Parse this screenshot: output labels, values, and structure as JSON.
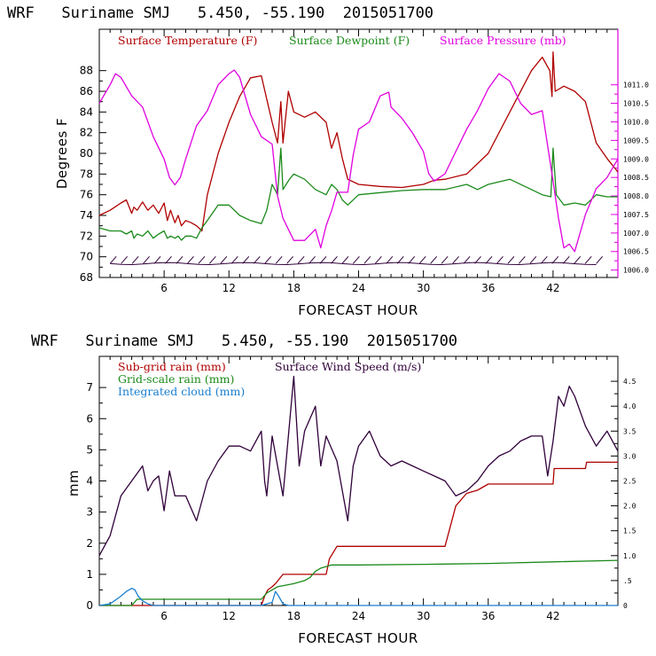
{
  "chart_data": [
    {
      "type": "line",
      "title": "WRF   Suriname SMJ   5.450, -55.190  2015051700",
      "xlabel": "FORECAST HOUR",
      "ylabel": "Degrees F",
      "xlim": [
        0,
        48
      ],
      "ylim": [
        68,
        92
      ],
      "xticks": [
        6,
        12,
        18,
        24,
        30,
        36,
        42
      ],
      "yticks": [
        68,
        70,
        72,
        74,
        76,
        78,
        80,
        82,
        84,
        86,
        88
      ],
      "y2lim": [
        1005.8,
        1012.5
      ],
      "y2ticks": [
        1006.0,
        1006.5,
        1007.0,
        1007.5,
        1008.0,
        1008.5,
        1009.0,
        1009.5,
        1010.0,
        1010.5,
        1011.0
      ],
      "y2ticklabels": [
        "1006.0",
        "1006.5",
        "1007.0",
        "1007.5",
        "1008.0",
        "1008.5",
        "1009.0",
        "1009.5",
        "1010.0",
        "1010.5",
        "1011.0"
      ],
      "legend": [
        "Surface Temperature (F)",
        "Surface Dewpoint (F)",
        "Surface Pressure (mb)"
      ],
      "colors": {
        "temperature": "#b00000",
        "dewpoint": "#1a8a1a",
        "pressure": "#e000e0",
        "wind": "#30003a"
      },
      "series": [
        {
          "name": "Surface Temperature (F)",
          "axis": "left",
          "x": [
            0,
            1,
            2,
            2.5,
            3,
            3.2,
            3.5,
            4,
            4.5,
            5,
            5.5,
            6,
            6.3,
            6.6,
            7,
            7.3,
            7.6,
            8,
            8.5,
            9,
            9.5,
            10,
            11,
            12,
            13,
            14,
            15,
            16,
            16.5,
            16.8,
            17,
            17.5,
            18,
            19,
            20,
            21,
            21.5,
            22,
            22.5,
            23,
            24,
            26,
            28,
            30,
            31,
            32,
            34,
            36,
            38,
            40,
            41,
            41.7,
            41.9,
            42,
            42.2,
            43,
            44,
            45,
            46,
            47,
            48
          ],
          "y": [
            74,
            74.5,
            75.2,
            75.5,
            74.2,
            74.8,
            74.5,
            75.3,
            74.5,
            75,
            74.2,
            75.2,
            73.5,
            74.5,
            73.3,
            74,
            73,
            73.5,
            73.3,
            73,
            72.5,
            76,
            80,
            83,
            85.5,
            87.3,
            87.5,
            83,
            81,
            85,
            81,
            86,
            84,
            83.5,
            84,
            83,
            80.5,
            82,
            79.5,
            77.5,
            77,
            76.8,
            76.7,
            77,
            77.4,
            77.5,
            78,
            80,
            84,
            88,
            89.3,
            88,
            85.5,
            89.8,
            86,
            86.5,
            86,
            85,
            81,
            79.5,
            78.2
          ]
        },
        {
          "name": "Surface Dewpoint (F)",
          "axis": "left",
          "x": [
            0,
            1,
            2,
            2.5,
            3,
            3.2,
            3.5,
            4,
            4.5,
            5,
            5.5,
            6,
            6.3,
            6.6,
            7,
            7.3,
            7.6,
            8,
            8.5,
            9,
            9.5,
            10,
            11,
            12,
            13,
            14,
            15,
            15.5,
            16,
            16.5,
            16.8,
            17,
            17.3,
            17.6,
            18,
            19,
            20,
            21,
            21.5,
            22,
            22.5,
            23,
            24,
            26,
            28,
            30,
            32,
            34,
            35,
            36,
            38,
            40,
            41,
            41.8,
            42,
            42.3,
            43,
            44,
            45,
            46,
            47,
            48
          ],
          "y": [
            72.8,
            72.5,
            72.5,
            72.2,
            72.5,
            71.8,
            72.2,
            72,
            72.5,
            71.8,
            72.2,
            72.5,
            71.8,
            72,
            71.8,
            72,
            71.6,
            72,
            72,
            71.8,
            72.8,
            73.5,
            75,
            75,
            74,
            73.5,
            73.2,
            74.5,
            77,
            76,
            80.5,
            76.5,
            77,
            77.5,
            78,
            77.5,
            76.5,
            76,
            77,
            76.5,
            75.5,
            75,
            76,
            76.2,
            76.4,
            76.5,
            76.5,
            77,
            76.5,
            77,
            77.5,
            76.5,
            76,
            75.8,
            80.5,
            76,
            75,
            75.2,
            75,
            76,
            75.8,
            75.8
          ]
        },
        {
          "name": "Surface Pressure (mb)",
          "axis": "right",
          "x": [
            0,
            1,
            1.5,
            2,
            3,
            4,
            5,
            6,
            6.5,
            7,
            7.5,
            8,
            9,
            10,
            11,
            12,
            12.5,
            13,
            14,
            15,
            16,
            16.5,
            17,
            18,
            19,
            20,
            20.5,
            21,
            21.5,
            22,
            23,
            23.5,
            24,
            25,
            26,
            26.8,
            27,
            28,
            29,
            30,
            30.5,
            31,
            32,
            33,
            34,
            35,
            36,
            37,
            38,
            39,
            40,
            41,
            42,
            42.5,
            43,
            43.5,
            44,
            45,
            46,
            47,
            48
          ],
          "y": [
            1010.5,
            1011,
            1011.3,
            1011.2,
            1010.7,
            1010.4,
            1009.6,
            1009,
            1008.5,
            1008.3,
            1008.5,
            1009,
            1009.9,
            1010.3,
            1011,
            1011.3,
            1011.4,
            1011.2,
            1010.2,
            1009.6,
            1009.4,
            1008,
            1007.4,
            1006.8,
            1006.8,
            1007.1,
            1006.6,
            1007.2,
            1007.6,
            1008.1,
            1008.1,
            1009.1,
            1009.8,
            1010,
            1010.7,
            1010.8,
            1010.4,
            1010.1,
            1009.7,
            1009.2,
            1008.6,
            1008.4,
            1008.6,
            1009.2,
            1009.8,
            1010.3,
            1010.9,
            1011.3,
            1011.1,
            1010.5,
            1010.2,
            1010.3,
            1008.4,
            1007.4,
            1006.6,
            1006.7,
            1006.5,
            1007.5,
            1008.2,
            1008.5,
            1009
          ]
        }
      ],
      "wind_barb_row_value": 69.6,
      "wind_barb_count": 44
    },
    {
      "type": "line",
      "title": "WRF   Suriname SMJ   5.450, -55.190  2015051700",
      "xlabel": "FORECAST HOUR",
      "ylabel": "mm",
      "xlim": [
        0,
        48
      ],
      "ylim": [
        0,
        8
      ],
      "xticks": [
        6,
        12,
        18,
        24,
        30,
        36,
        42
      ],
      "yticks": [
        0,
        1,
        2,
        3,
        4,
        5,
        6,
        7
      ],
      "y2lim": [
        0,
        5.0
      ],
      "y2ticks": [
        0,
        0.5,
        1.0,
        1.5,
        2.0,
        2.5,
        3.0,
        3.5,
        4.0,
        4.5
      ],
      "y2ticklabels": [
        "0",
        ".5",
        "1.0",
        "1.5",
        "2.0",
        "2.5",
        "3.0",
        "3.5",
        "4.0",
        "4.5"
      ],
      "legend": [
        "Sub-grid rain (mm)",
        "Grid-scale rain (mm)",
        "Integrated cloud (mm)",
        "Surface Wind Speed (m/s)"
      ],
      "colors": {
        "subgrid": "#b00000",
        "gridscale": "#1a8a1a",
        "cloud": "#1a7fd0",
        "wind": "#30003a"
      },
      "series": [
        {
          "name": "Sub-grid rain (mm)",
          "axis": "left",
          "x": [
            0,
            15,
            15.3,
            15.6,
            16,
            16.3,
            17,
            21,
            21.3,
            22,
            32,
            33,
            34,
            35,
            36,
            42,
            42.1,
            44,
            45,
            45.1,
            48
          ],
          "y": [
            0,
            0,
            0.3,
            0.5,
            0.6,
            0.7,
            1,
            1,
            1.5,
            1.9,
            1.9,
            3.2,
            3.6,
            3.7,
            3.9,
            3.9,
            4.4,
            4.4,
            4.4,
            4.6,
            4.6
          ]
        },
        {
          "name": "Grid-scale rain (mm)",
          "axis": "left",
          "x": [
            0,
            3,
            3.5,
            15,
            15.5,
            16,
            16.5,
            18,
            19,
            19.5,
            20,
            20.5,
            21,
            21.5,
            22,
            24,
            30,
            36,
            42,
            48
          ],
          "y": [
            0,
            0,
            0.2,
            0.2,
            0.4,
            0.5,
            0.6,
            0.7,
            0.8,
            0.9,
            1.1,
            1.2,
            1.25,
            1.3,
            1.3,
            1.3,
            1.32,
            1.35,
            1.4,
            1.45
          ]
        },
        {
          "name": "Integrated cloud (mm)",
          "axis": "left",
          "x": [
            0,
            1,
            2,
            2.5,
            3,
            3.3,
            3.6,
            4,
            4.5,
            5,
            15,
            16,
            16.3,
            16.6,
            17,
            17.5,
            48
          ],
          "y": [
            0,
            0.05,
            0.3,
            0.45,
            0.55,
            0.5,
            0.3,
            0.15,
            0.05,
            0,
            0,
            0.1,
            0.45,
            0.3,
            0.05,
            0,
            0
          ]
        },
        {
          "name": "Surface Wind Speed (m/s)",
          "axis": "right",
          "x": [
            0,
            1,
            2,
            3,
            4,
            4.5,
            5,
            5.5,
            6,
            6.5,
            7,
            8,
            9,
            10,
            11,
            12,
            13,
            14,
            15,
            15.3,
            15.5,
            16,
            16.5,
            17,
            17.5,
            18,
            18.5,
            19,
            20,
            20.5,
            21,
            22,
            23,
            23.5,
            24,
            25,
            26,
            27,
            28,
            29,
            30,
            31,
            32,
            33,
            34,
            35,
            36,
            37,
            38,
            39,
            40,
            41,
            41.5,
            42,
            42.5,
            43,
            43.5,
            44,
            45,
            46,
            47,
            48
          ],
          "y": [
            1,
            1.4,
            2.2,
            2.5,
            2.8,
            2.3,
            2.5,
            2.6,
            1.9,
            2.7,
            2.2,
            2.2,
            1.7,
            2.5,
            2.9,
            3.2,
            3.2,
            3.1,
            3.5,
            2.5,
            2.2,
            3.4,
            2.8,
            2.2,
            3.4,
            4.6,
            2.8,
            3.5,
            4.0,
            2.8,
            3.4,
            2.9,
            1.7,
            2.8,
            3.2,
            3.5,
            3.0,
            2.8,
            2.9,
            2.8,
            2.7,
            2.6,
            2.5,
            2.2,
            2.3,
            2.5,
            2.8,
            3.0,
            3.1,
            3.3,
            3.4,
            3.4,
            2.6,
            3.3,
            4.2,
            4.0,
            4.4,
            4.2,
            3.6,
            3.2,
            3.5,
            3.1
          ]
        }
      ]
    }
  ]
}
